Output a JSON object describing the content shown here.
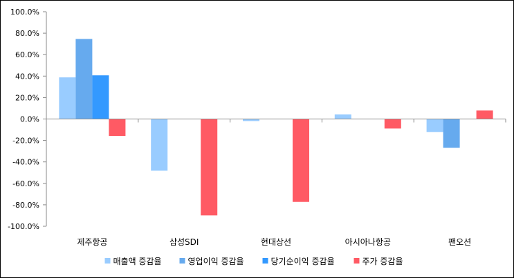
{
  "chart_data": {
    "type": "bar",
    "categories": [
      "제주항공",
      "삼성SDI",
      "현대상선",
      "아시아나항공",
      "팬오션"
    ],
    "series": [
      {
        "name": "매출액 증감율",
        "color": "#99CCFF",
        "values": [
          38.8,
          -48.2,
          -1.9,
          4.3,
          -12.1
        ]
      },
      {
        "name": "영업이익 증감율",
        "color": "#66AAEE",
        "values": [
          74.6,
          0,
          0,
          0,
          -26.8
        ]
      },
      {
        "name": "당기순이익 증감율",
        "color": "#3399FF",
        "values": [
          40.7,
          0,
          0,
          0,
          0
        ]
      },
      {
        "name": "주가 증감율",
        "color": "#FF5A64",
        "values": [
          -15.8,
          -89.9,
          -77.3,
          -8.9,
          7.9
        ]
      }
    ],
    "ylim": [
      -100,
      100
    ],
    "ytick_step": 20,
    "ytick_labels": [
      "100.0%",
      "80.0%",
      "60.0%",
      "40.0%",
      "20.0%",
      "0.0%",
      "-20.0%",
      "-40.0%",
      "-60.0%",
      "-80.0%",
      "-100.0%"
    ],
    "title": "",
    "xlabel": "",
    "ylabel": "",
    "grid": false,
    "legend_position": "bottom"
  }
}
